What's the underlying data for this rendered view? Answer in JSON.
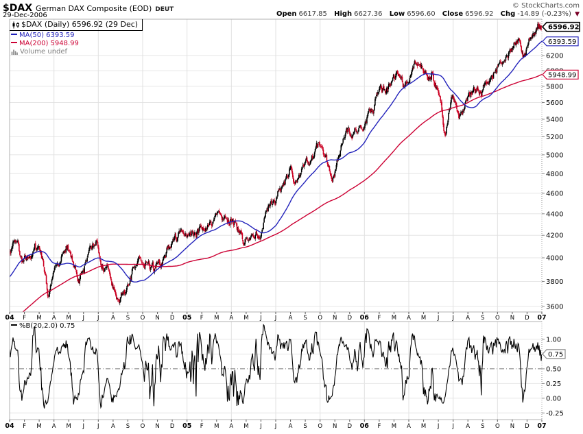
{
  "header": {
    "symbol": "$DAX",
    "name": "German DAX Composite (EOD)",
    "exchange": "DEUT",
    "date": "29-Dec-2006",
    "copyright": "© StockCharts.com",
    "quote": {
      "open_label": "Open",
      "open": "6617.85",
      "high_label": "High",
      "high": "6627.36",
      "low_label": "Low",
      "low": "6596.60",
      "close_label": "Close",
      "close": "6596.92",
      "chg_label": "Chg",
      "chg": "-14.89 (-0.23%)",
      "chg_icon": "▼"
    }
  },
  "legend": {
    "main": [
      {
        "label": "$DAX (Daily) 6596.92 (29 Dec)",
        "color": "#000000"
      },
      {
        "label": "MA(50) 6393.59",
        "color": "#2222bb"
      },
      {
        "label": "MA(200) 5948.99",
        "color": "#cc0033"
      },
      {
        "label": "Volume undef",
        "color": "#808080"
      }
    ],
    "lower": {
      "label": "%B(20,2.0) 0.75",
      "color": "#000000"
    }
  },
  "chart_data": {
    "type": "candlestick",
    "symbol": "$DAX",
    "period": "Daily",
    "title": "$DAX German DAX Composite (EOD) DEUT",
    "x_range": [
      "Jan 2004",
      "Dec 2006"
    ],
    "month_labels": [
      "04",
      "F",
      "M",
      "A",
      "M",
      "J",
      "J",
      "A",
      "S",
      "O",
      "N",
      "D",
      "05",
      "F",
      "M",
      "A",
      "M",
      "J",
      "J",
      "A",
      "S",
      "O",
      "N",
      "D",
      "06",
      "F",
      "M",
      "A",
      "M",
      "J",
      "J",
      "A",
      "S",
      "O",
      "N",
      "D",
      "07"
    ],
    "year_label_indices": [
      0,
      12,
      24,
      36
    ],
    "price_axis": {
      "scale": "log",
      "ticks": [
        3600,
        3800,
        4000,
        4200,
        4400,
        4600,
        4800,
        5000,
        5200,
        5400,
        5600,
        5800,
        6000,
        6200
      ],
      "range": [
        3557,
        6708
      ],
      "grid": true
    },
    "pb_axis": {
      "ticks": [
        -0.25,
        0.0,
        0.25,
        0.5,
        0.75,
        1.0
      ],
      "range": [
        -0.363,
        1.302
      ],
      "midline": 0.5
    },
    "grid_vertical": "quarterly",
    "last_quote": {
      "open": 6617.85,
      "high": 6627.36,
      "low": 6596.6,
      "close": 6596.92,
      "change": -14.89,
      "change_pct": -0.23
    },
    "overlays": [
      {
        "name": "MA(50)",
        "value": 6393.59,
        "color": "#2222bb"
      },
      {
        "name": "MA(200)",
        "value": 5948.99,
        "color": "#cc0033"
      }
    ],
    "indicator": {
      "name": "%B",
      "params": "20,2.0",
      "value": 0.75,
      "color": "#000000"
    },
    "candle_colors": {
      "up": "#000000",
      "down": "#cc0022"
    },
    "tags": {
      "last": {
        "text": "6596.92",
        "value": 6596.92,
        "color": "#000000"
      },
      "ma50": {
        "text": "6393.59",
        "value": 6393.59,
        "color": "#2222bb"
      },
      "ma200": {
        "text": "5948.99",
        "value": 5948.99,
        "color": "#cc0033"
      },
      "pb": {
        "text": "0.75",
        "value": 0.75,
        "color": "#888888"
      }
    },
    "pre_waypoints": [
      [
        -10,
        2950
      ],
      [
        -8,
        3060
      ],
      [
        -6,
        3280
      ],
      [
        -4,
        3520
      ],
      [
        -2,
        3730
      ],
      [
        -1,
        3870
      ]
    ],
    "waypoints": [
      [
        0,
        4020
      ],
      [
        0.4,
        4130
      ],
      [
        0.9,
        3950
      ],
      [
        1.5,
        4060
      ],
      [
        2.0,
        4100
      ],
      [
        2.35,
        3900
      ],
      [
        2.6,
        3700
      ],
      [
        3.1,
        3880
      ],
      [
        3.5,
        4020
      ],
      [
        3.9,
        4120
      ],
      [
        4.4,
        3890
      ],
      [
        4.7,
        3820
      ],
      [
        5.3,
        4000
      ],
      [
        5.9,
        4130
      ],
      [
        6.3,
        3980
      ],
      [
        6.8,
        3850
      ],
      [
        7.1,
        3720
      ],
      [
        7.45,
        3618
      ],
      [
        7.8,
        3700
      ],
      [
        8.3,
        3870
      ],
      [
        8.85,
        4000
      ],
      [
        9.3,
        4050
      ],
      [
        9.75,
        3900
      ],
      [
        10.3,
        3980
      ],
      [
        10.9,
        4120
      ],
      [
        11.5,
        4200
      ],
      [
        12.0,
        4256
      ],
      [
        12.6,
        4180
      ],
      [
        13.1,
        4290
      ],
      [
        13.6,
        4330
      ],
      [
        14.3,
        4408
      ],
      [
        15.0,
        4340
      ],
      [
        15.5,
        4230
      ],
      [
        15.9,
        4150
      ],
      [
        16.4,
        4250
      ],
      [
        16.9,
        4180
      ],
      [
        17.5,
        4420
      ],
      [
        18.1,
        4580
      ],
      [
        18.6,
        4700
      ],
      [
        19.0,
        4880
      ],
      [
        19.3,
        4750
      ],
      [
        19.8,
        4850
      ],
      [
        20.4,
        4990
      ],
      [
        21.1,
        5120
      ],
      [
        21.5,
        4950
      ],
      [
        21.8,
        4780
      ],
      [
        22.2,
        4960
      ],
      [
        22.7,
        5190
      ],
      [
        23.2,
        5250
      ],
      [
        23.6,
        5350
      ],
      [
        24.0,
        5430
      ],
      [
        24.5,
        5560
      ],
      [
        24.9,
        5680
      ],
      [
        25.4,
        5750
      ],
      [
        25.8,
        5800
      ],
      [
        26.3,
        5870
      ],
      [
        26.6,
        5750
      ],
      [
        27.0,
        5900
      ],
      [
        27.5,
        6060
      ],
      [
        27.9,
        6140
      ],
      [
        28.35,
        5950
      ],
      [
        28.6,
        6050
      ],
      [
        28.9,
        5750
      ],
      [
        29.2,
        5480
      ],
      [
        29.45,
        5270
      ],
      [
        29.7,
        5550
      ],
      [
        29.95,
        5710
      ],
      [
        30.25,
        5550
      ],
      [
        30.5,
        5460
      ],
      [
        30.9,
        5620
      ],
      [
        31.3,
        5690
      ],
      [
        31.7,
        5800
      ],
      [
        31.9,
        5750
      ],
      [
        32.4,
        5900
      ],
      [
        32.8,
        6010
      ],
      [
        33.3,
        6150
      ],
      [
        33.7,
        6250
      ],
      [
        34.1,
        6350
      ],
      [
        34.5,
        6400
      ],
      [
        34.75,
        6250
      ],
      [
        35.0,
        6350
      ],
      [
        35.4,
        6480
      ],
      [
        35.75,
        6610
      ],
      [
        36,
        6596.92
      ]
    ],
    "days": 783,
    "seed": 7
  }
}
